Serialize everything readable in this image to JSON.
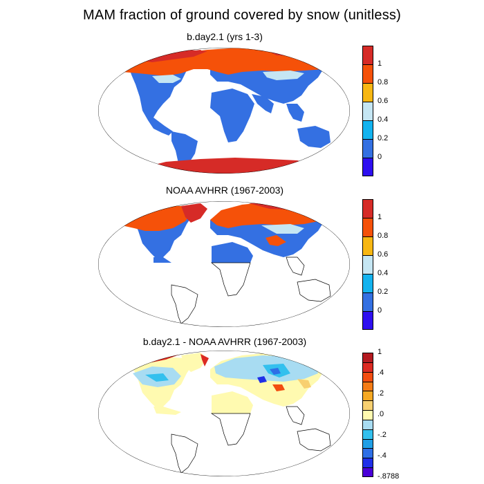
{
  "title": "MAM fraction of ground covered by snow (unitless)",
  "panels": [
    {
      "title": "b.day2.1 (yrs 1-3)",
      "colorbar": {
        "colors": [
          "#2e0ff0",
          "#3470e2",
          "#13b3ef",
          "#c5e6f3",
          "#f7b713",
          "#f55109",
          "#d62b27"
        ],
        "labels": [
          "0",
          "0.2",
          "0.4",
          "0.6",
          "0.8",
          "1"
        ]
      }
    },
    {
      "title": "NOAA AVHRR (1967-2003)",
      "colorbar": {
        "colors": [
          "#2e0ff0",
          "#3470e2",
          "#13b3ef",
          "#c5e6f3",
          "#f7b713",
          "#f55109",
          "#d62b27"
        ],
        "labels": [
          "0",
          "0.2",
          "0.4",
          "0.6",
          "0.8",
          "1"
        ]
      }
    },
    {
      "title": "b.day2.1 - NOAA AVHRR (1967-2003)",
      "colorbar": {
        "colors": [
          "#4a00d8",
          "#1f2fe8",
          "#2e6fe6",
          "#1f9fe6",
          "#33c0ee",
          "#a8dcf2",
          "#fffab0",
          "#f8d070",
          "#f7a923",
          "#f57c16",
          "#f24d10",
          "#dc2a22",
          "#b41a20"
        ],
        "labels": [
          "-.8788",
          "-.4",
          "-.2",
          ".0",
          ".2",
          ".4",
          "1"
        ]
      }
    }
  ]
}
